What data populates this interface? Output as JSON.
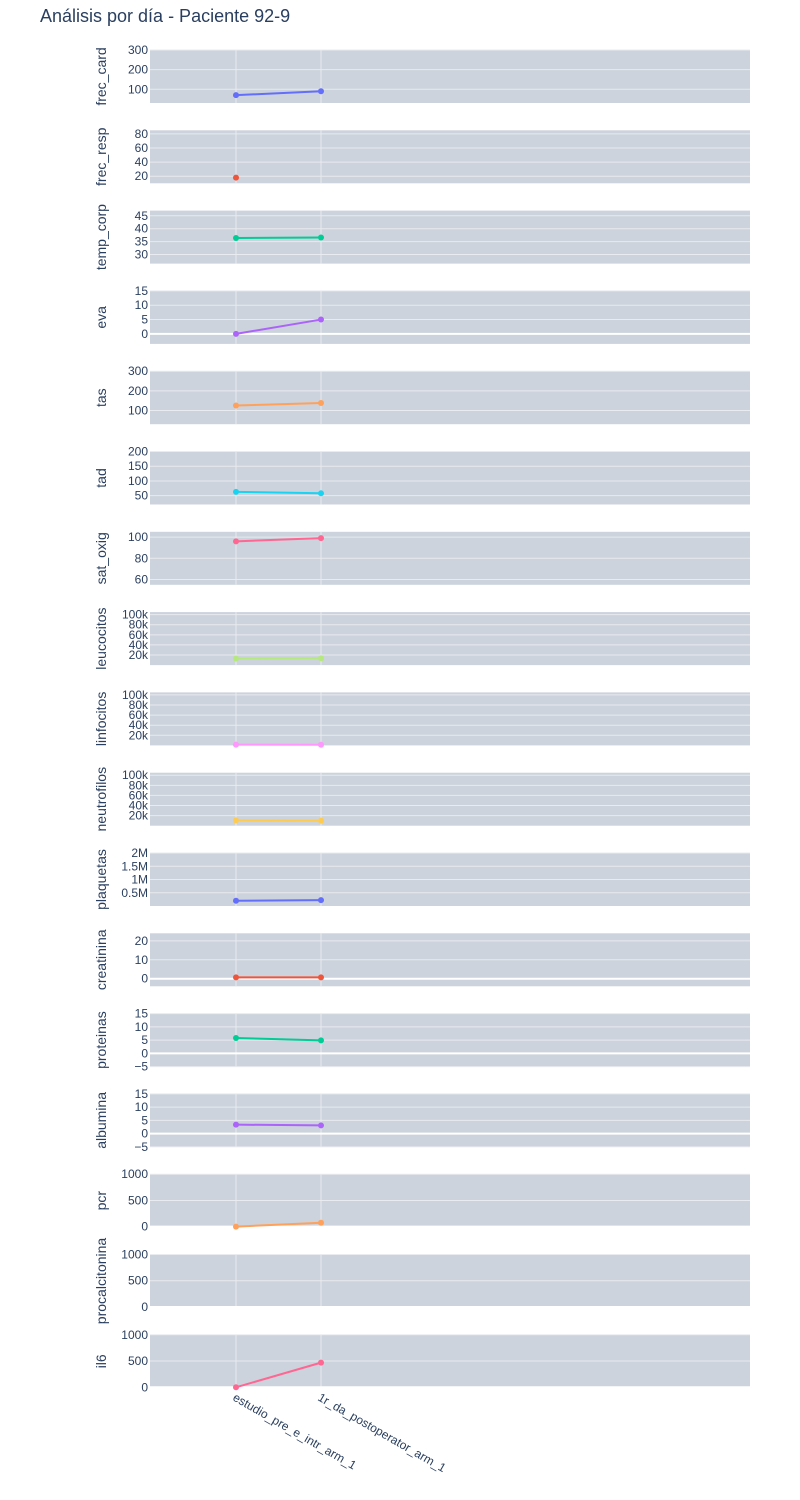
{
  "title": "Análisis por día - Paciente 92-9",
  "colors": {
    "plot_bg": "#ccd3dc",
    "grid": "#e8ebef",
    "zero_line": "#ffffff",
    "text": "#2a3f5f"
  },
  "chart_data": {
    "type": "line",
    "categories": [
      "estudio_pre_e_intr_arm_1",
      "1r_da_postoperator_arm_1"
    ],
    "panels": [
      {
        "name": "frec_card",
        "ylabel": "frec_card",
        "values": [
          70,
          90
        ],
        "ylim": [
          30,
          300
        ],
        "ticks": [
          {
            "v": 100,
            "label": "100"
          },
          {
            "v": 200,
            "label": "200"
          },
          {
            "v": 300,
            "label": "300"
          }
        ],
        "color": "#636efa"
      },
      {
        "name": "frec_resp",
        "ylabel": "frec_resp",
        "values": [
          18,
          null
        ],
        "ylim": [
          10,
          85
        ],
        "ticks": [
          {
            "v": 20,
            "label": "20"
          },
          {
            "v": 40,
            "label": "40"
          },
          {
            "v": 60,
            "label": "60"
          },
          {
            "v": 80,
            "label": "80"
          }
        ],
        "color": "#ef553b"
      },
      {
        "name": "temp_corp",
        "ylabel": "temp_corp",
        "values": [
          36.4,
          36.6
        ],
        "ylim": [
          26.5,
          47
        ],
        "ticks": [
          {
            "v": 30,
            "label": "30"
          },
          {
            "v": 35,
            "label": "35"
          },
          {
            "v": 40,
            "label": "40"
          },
          {
            "v": 45,
            "label": "45"
          }
        ],
        "color": "#00cc96"
      },
      {
        "name": "eva",
        "ylabel": "eva",
        "values": [
          0,
          5
        ],
        "ylim": [
          -3.5,
          15
        ],
        "ticks": [
          {
            "v": 0,
            "label": "0"
          },
          {
            "v": 5,
            "label": "5"
          },
          {
            "v": 10,
            "label": "10"
          },
          {
            "v": 15,
            "label": "15"
          }
        ],
        "color": "#ab63fa"
      },
      {
        "name": "tas",
        "ylabel": "tas",
        "values": [
          125,
          138
        ],
        "ylim": [
          30,
          300
        ],
        "ticks": [
          {
            "v": 100,
            "label": "100"
          },
          {
            "v": 200,
            "label": "200"
          },
          {
            "v": 300,
            "label": "300"
          }
        ],
        "color": "#ffa15a"
      },
      {
        "name": "tad",
        "ylabel": "tad",
        "values": [
          63,
          58
        ],
        "ylim": [
          20,
          200
        ],
        "ticks": [
          {
            "v": 50,
            "label": "50"
          },
          {
            "v": 100,
            "label": "100"
          },
          {
            "v": 150,
            "label": "150"
          },
          {
            "v": 200,
            "label": "200"
          }
        ],
        "color": "#19d3f3"
      },
      {
        "name": "sat_oxig",
        "ylabel": "sat_oxig",
        "values": [
          96,
          99
        ],
        "ylim": [
          55,
          105
        ],
        "ticks": [
          {
            "v": 60,
            "label": "60"
          },
          {
            "v": 80,
            "label": "80"
          },
          {
            "v": 100,
            "label": "100"
          }
        ],
        "color": "#ff6692"
      },
      {
        "name": "leucocitos",
        "ylabel": "leucocitos",
        "values": [
          13000,
          13500
        ],
        "ylim": [
          0,
          105000
        ],
        "ticks": [
          {
            "v": 20000,
            "label": "20k"
          },
          {
            "v": 40000,
            "label": "40k"
          },
          {
            "v": 60000,
            "label": "60k"
          },
          {
            "v": 80000,
            "label": "80k"
          },
          {
            "v": 100000,
            "label": "100k"
          }
        ],
        "color": "#b6e880"
      },
      {
        "name": "linfocitos",
        "ylabel": "linfocitos",
        "values": [
          1500,
          1200
        ],
        "ylim": [
          0,
          105000
        ],
        "ticks": [
          {
            "v": 20000,
            "label": "20k"
          },
          {
            "v": 40000,
            "label": "40k"
          },
          {
            "v": 60000,
            "label": "60k"
          },
          {
            "v": 80000,
            "label": "80k"
          },
          {
            "v": 100000,
            "label": "100k"
          }
        ],
        "color": "#ff97ff"
      },
      {
        "name": "neutrofilos",
        "ylabel": "neutrofilos",
        "values": [
          10500,
          10000
        ],
        "ylim": [
          0,
          105000
        ],
        "ticks": [
          {
            "v": 20000,
            "label": "20k"
          },
          {
            "v": 40000,
            "label": "40k"
          },
          {
            "v": 60000,
            "label": "60k"
          },
          {
            "v": 80000,
            "label": "80k"
          },
          {
            "v": 100000,
            "label": "100k"
          }
        ],
        "color": "#fecb52"
      },
      {
        "name": "plaquetas",
        "ylabel": "plaquetas",
        "values": [
          200000,
          220000
        ],
        "ylim": [
          0,
          2000000
        ],
        "ticks": [
          {
            "v": 500000,
            "label": "0.5M"
          },
          {
            "v": 1000000,
            "label": "1M"
          },
          {
            "v": 1500000,
            "label": "1.5M"
          },
          {
            "v": 2000000,
            "label": "2M"
          }
        ],
        "color": "#636efa"
      },
      {
        "name": "creatinina",
        "ylabel": "creatinina",
        "values": [
          0.7,
          0.7
        ],
        "ylim": [
          -4,
          24
        ],
        "ticks": [
          {
            "v": 0,
            "label": "0"
          },
          {
            "v": 10,
            "label": "10"
          },
          {
            "v": 20,
            "label": "20"
          }
        ],
        "color": "#ef553b"
      },
      {
        "name": "proteinas",
        "ylabel": "proteinas",
        "values": [
          5.8,
          4.9
        ],
        "ylim": [
          -5,
          15
        ],
        "ticks": [
          {
            "v": -5,
            "label": "−5"
          },
          {
            "v": 0,
            "label": "0"
          },
          {
            "v": 5,
            "label": "5"
          },
          {
            "v": 10,
            "label": "10"
          },
          {
            "v": 15,
            "label": "15"
          }
        ],
        "color": "#00cc96"
      },
      {
        "name": "albumina",
        "ylabel": "albumina",
        "values": [
          3.4,
          3.1
        ],
        "ylim": [
          -5,
          15
        ],
        "ticks": [
          {
            "v": -5,
            "label": "−5"
          },
          {
            "v": 0,
            "label": "0"
          },
          {
            "v": 5,
            "label": "5"
          },
          {
            "v": 10,
            "label": "10"
          },
          {
            "v": 15,
            "label": "15"
          }
        ],
        "color": "#ab63fa"
      },
      {
        "name": "pcr",
        "ylabel": "pcr",
        "values": [
          2,
          75
        ],
        "ylim": [
          -10,
          1000
        ],
        "ticks": [
          {
            "v": 0,
            "label": "0"
          },
          {
            "v": 500,
            "label": "500"
          },
          {
            "v": 1000,
            "label": "1000"
          }
        ],
        "color": "#ffa15a"
      },
      {
        "name": "procalcitonina",
        "ylabel": "procalcitonina",
        "values": [
          null,
          null
        ],
        "ylim": [
          -10,
          1000
        ],
        "ticks": [
          {
            "v": 0,
            "label": "0"
          },
          {
            "v": 500,
            "label": "500"
          },
          {
            "v": 1000,
            "label": "1000"
          }
        ],
        "color": "#19d3f3"
      },
      {
        "name": "il6",
        "ylabel": "il6",
        "values": [
          0,
          470
        ],
        "ylim": [
          -10,
          1000
        ],
        "ticks": [
          {
            "v": 0,
            "label": "0"
          },
          {
            "v": 500,
            "label": "500"
          },
          {
            "v": 1000,
            "label": "1000"
          }
        ],
        "color": "#ff6692"
      }
    ]
  }
}
